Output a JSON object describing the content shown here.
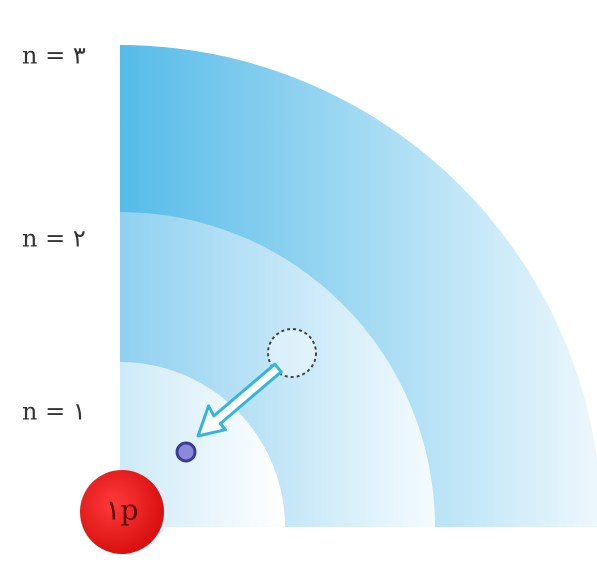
{
  "levels": [
    "n = ۱",
    "n = ۲",
    "n = ۳"
  ],
  "nucleus": "۱p"
}
